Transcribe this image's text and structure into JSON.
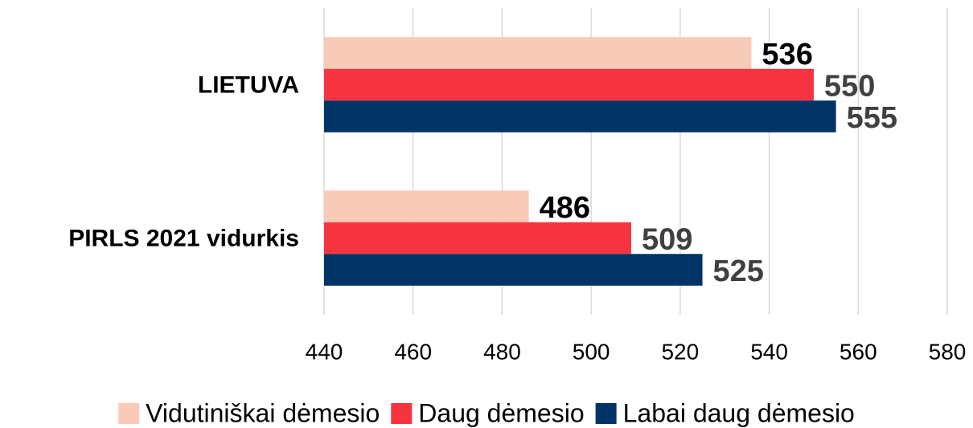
{
  "chart_data": {
    "type": "barh",
    "categories": [
      "LIETUVA",
      "PIRLS 2021 vidurkis"
    ],
    "series": [
      {
        "name": "Vidutiniškai dėmesio",
        "color": "#f8cbb8",
        "label_color": "#000000",
        "values": [
          536,
          486
        ]
      },
      {
        "name": "Daug dėmesio",
        "color": "#f63440",
        "label_color": "#404040",
        "values": [
          550,
          509
        ]
      },
      {
        "name": "Labai daug dėmesio",
        "color": "#003366",
        "label_color": "#404040",
        "values": [
          555,
          525
        ]
      }
    ],
    "xlim": [
      440,
      580
    ],
    "xticks": [
      440,
      460,
      480,
      500,
      520,
      540,
      560,
      580
    ],
    "grid": true,
    "legend": "bottom"
  }
}
